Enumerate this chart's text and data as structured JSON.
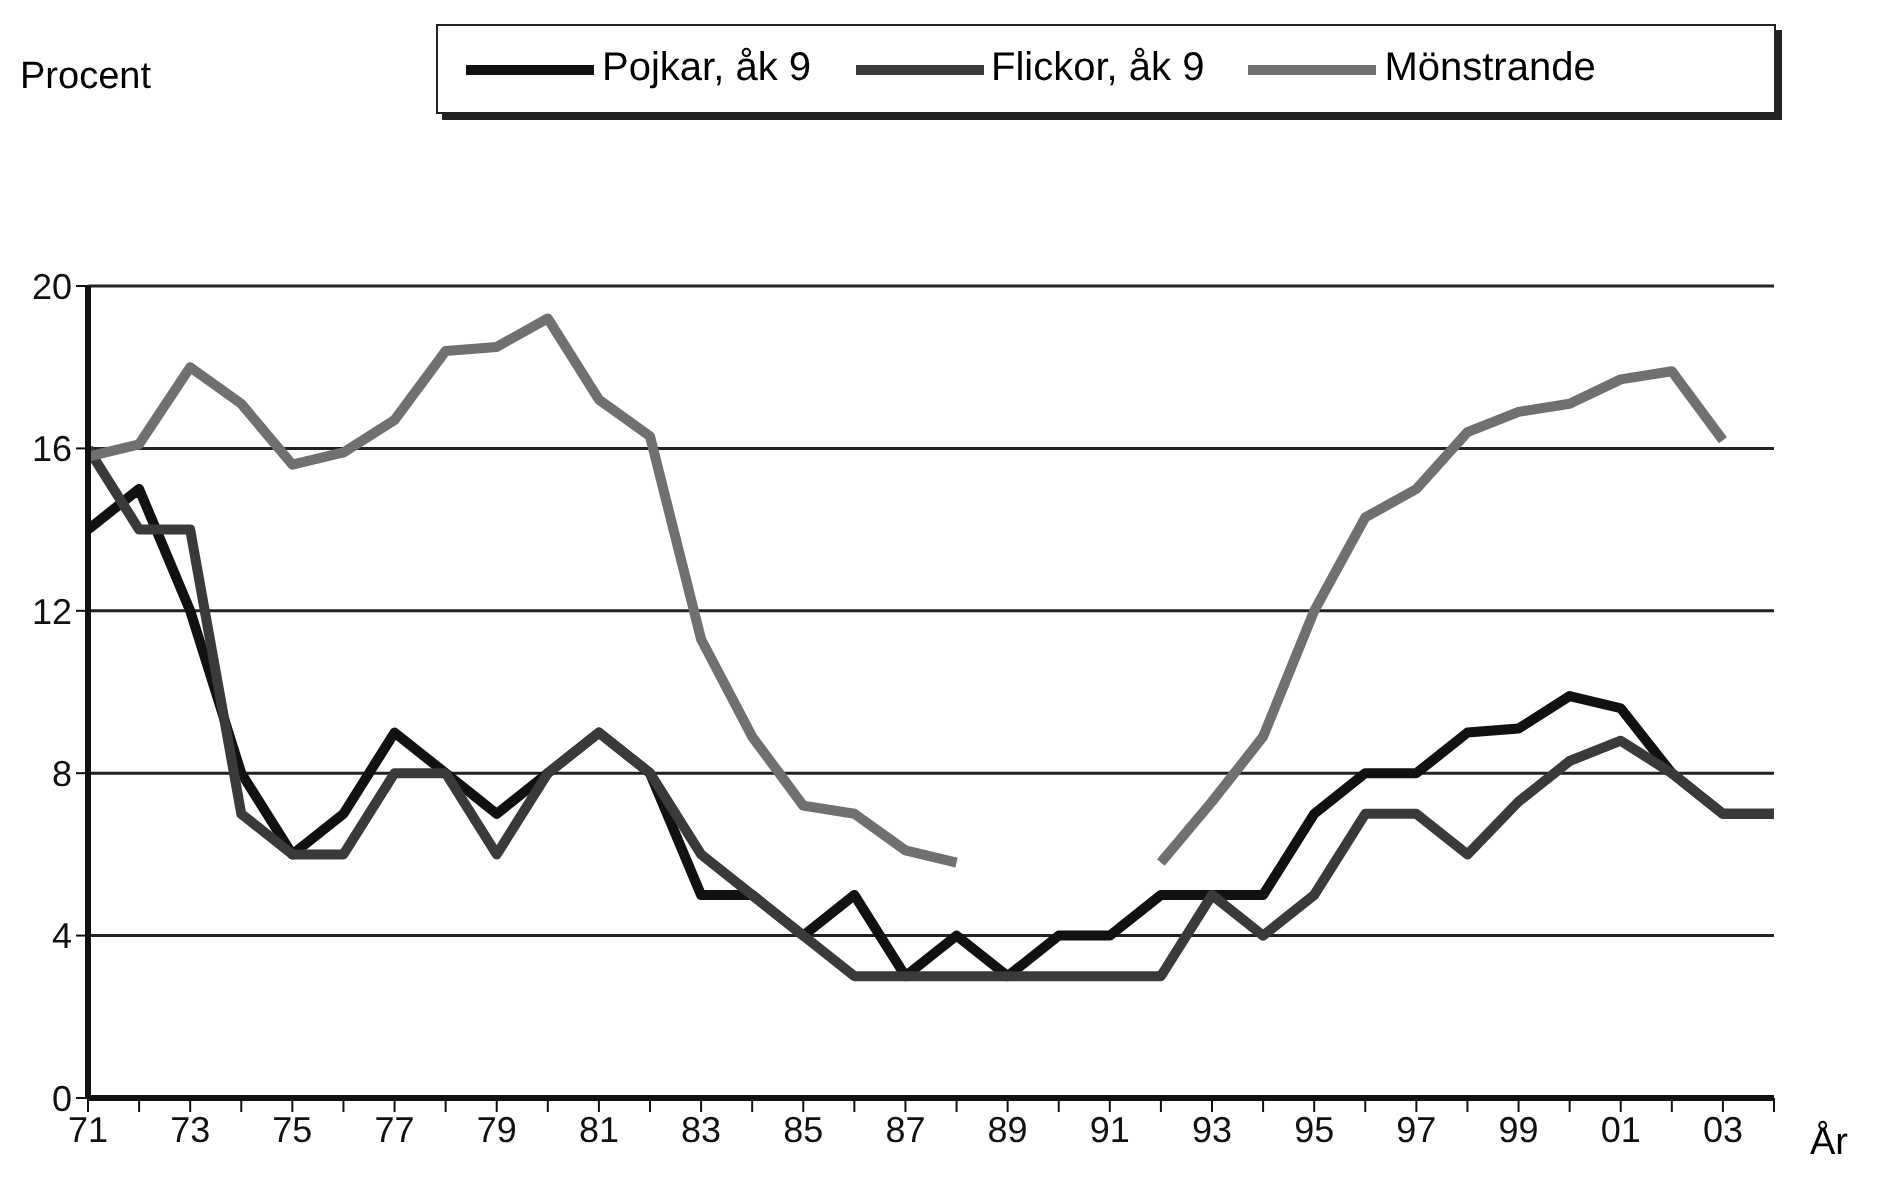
{
  "chart_data": {
    "type": "line",
    "ylabel": "Procent",
    "xlabel": "År",
    "x": [
      1971,
      1972,
      1973,
      1974,
      1975,
      1976,
      1977,
      1978,
      1979,
      1980,
      1981,
      1982,
      1983,
      1984,
      1985,
      1986,
      1987,
      1988,
      1989,
      1990,
      1991,
      1992,
      1993,
      1994,
      1995,
      1996,
      1997,
      1998,
      1999,
      2000,
      2001,
      2002,
      2003,
      2004
    ],
    "xlim": [
      1971,
      2004
    ],
    "xticks": [
      {
        "value": 1971,
        "label": "71"
      },
      {
        "value": 1972,
        "label": null
      },
      {
        "value": 1973,
        "label": "73"
      },
      {
        "value": 1974,
        "label": null
      },
      {
        "value": 1975,
        "label": "75"
      },
      {
        "value": 1976,
        "label": null
      },
      {
        "value": 1977,
        "label": "77"
      },
      {
        "value": 1978,
        "label": null
      },
      {
        "value": 1979,
        "label": "79"
      },
      {
        "value": 1980,
        "label": null
      },
      {
        "value": 1981,
        "label": "81"
      },
      {
        "value": 1982,
        "label": null
      },
      {
        "value": 1983,
        "label": "83"
      },
      {
        "value": 1984,
        "label": null
      },
      {
        "value": 1985,
        "label": "85"
      },
      {
        "value": 1986,
        "label": null
      },
      {
        "value": 1987,
        "label": "87"
      },
      {
        "value": 1988,
        "label": null
      },
      {
        "value": 1989,
        "label": "89"
      },
      {
        "value": 1990,
        "label": null
      },
      {
        "value": 1991,
        "label": "91"
      },
      {
        "value": 1992,
        "label": null
      },
      {
        "value": 1993,
        "label": "93"
      },
      {
        "value": 1994,
        "label": null
      },
      {
        "value": 1995,
        "label": "95"
      },
      {
        "value": 1996,
        "label": null
      },
      {
        "value": 1997,
        "label": "97"
      },
      {
        "value": 1998,
        "label": null
      },
      {
        "value": 1999,
        "label": "99"
      },
      {
        "value": 2000,
        "label": null
      },
      {
        "value": 2001,
        "label": "01"
      },
      {
        "value": 2002,
        "label": null
      },
      {
        "value": 2003,
        "label": "03"
      },
      {
        "value": 2004,
        "label": null
      }
    ],
    "ylim": [
      0,
      20
    ],
    "yticks": [
      0,
      4,
      8,
      12,
      16,
      20
    ],
    "grid": "y",
    "legend": "top",
    "marker": "none",
    "line_style": "solid",
    "series": [
      {
        "name": "Pojkar, åk 9",
        "color": "#111111",
        "values": [
          14,
          15,
          12,
          8,
          6,
          7,
          9,
          8,
          7,
          8,
          9,
          8,
          5,
          5,
          4,
          5,
          3,
          4,
          3,
          4,
          4,
          5,
          5,
          5,
          7,
          8,
          8,
          9,
          9.1,
          9.9,
          9.6,
          8,
          7,
          7
        ]
      },
      {
        "name": "Flickor, åk 9",
        "color": "#3a3a3a",
        "values": [
          16,
          14,
          14,
          7,
          6,
          6,
          8,
          8,
          6,
          8,
          9,
          8,
          6,
          5,
          4,
          3,
          3,
          3,
          3,
          3,
          3,
          3,
          5,
          4,
          5,
          7,
          7,
          6,
          7.3,
          8.3,
          8.8,
          8,
          7,
          7
        ]
      },
      {
        "name": "Mönstrande",
        "color": "#707070",
        "values": [
          15.8,
          16.1,
          18,
          17.1,
          15.6,
          15.9,
          16.7,
          18.4,
          18.5,
          19.2,
          17.2,
          16.3,
          11.3,
          8.9,
          7.2,
          7,
          6.1,
          5.8,
          null,
          null,
          null,
          5.8,
          7.3,
          8.9,
          12,
          14.3,
          15,
          16.4,
          16.9,
          17.1,
          17.7,
          17.9,
          16.2,
          null
        ]
      }
    ]
  }
}
